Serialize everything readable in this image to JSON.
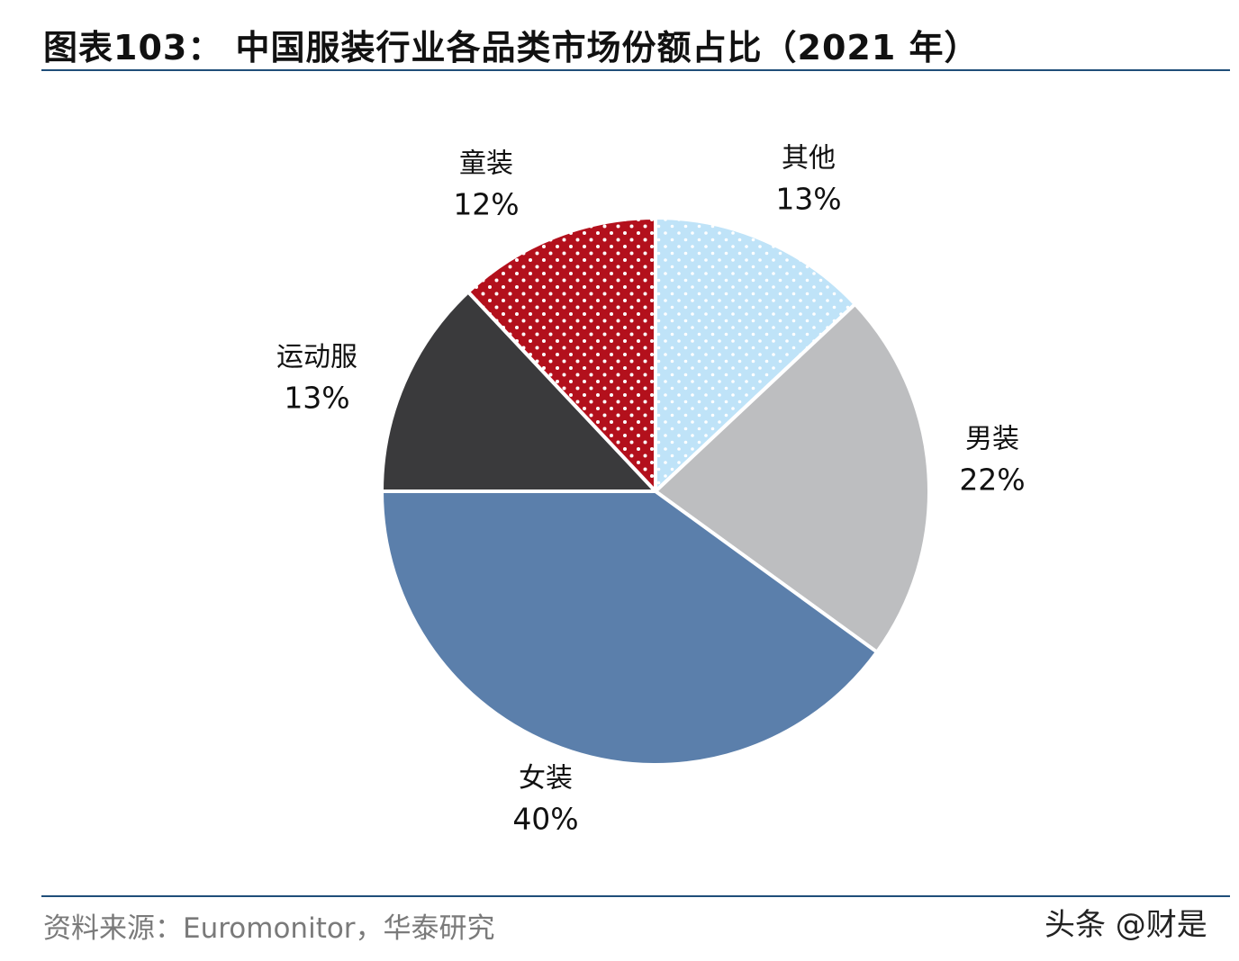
{
  "header": {
    "title": "图表103： 中国服装行业各品类市场份额占比（2021 年）"
  },
  "footer": {
    "source": "资料来源：Euromonitor，华泰研究",
    "watermark": "头条 @财是"
  },
  "chart_data": {
    "type": "pie",
    "title": "图表103： 中国服装行业各品类市场份额占比（2021 年）",
    "start_angle_deg": 0,
    "direction": "clockwise",
    "slices": [
      {
        "name": "其他",
        "value": 13,
        "label": "13%",
        "color": "#bfe3f8",
        "pattern": "dots-white"
      },
      {
        "name": "男装",
        "value": 22,
        "label": "22%",
        "color": "#bdbec0",
        "pattern": "none"
      },
      {
        "name": "女装",
        "value": 40,
        "label": "40%",
        "color": "#5b7fab",
        "pattern": "none"
      },
      {
        "name": "运动服",
        "value": 13,
        "label": "13%",
        "color": "#3a3a3c",
        "pattern": "none"
      },
      {
        "name": "童装",
        "value": 12,
        "label": "12%",
        "color": "#b3101c",
        "pattern": "dots-white"
      }
    ]
  }
}
